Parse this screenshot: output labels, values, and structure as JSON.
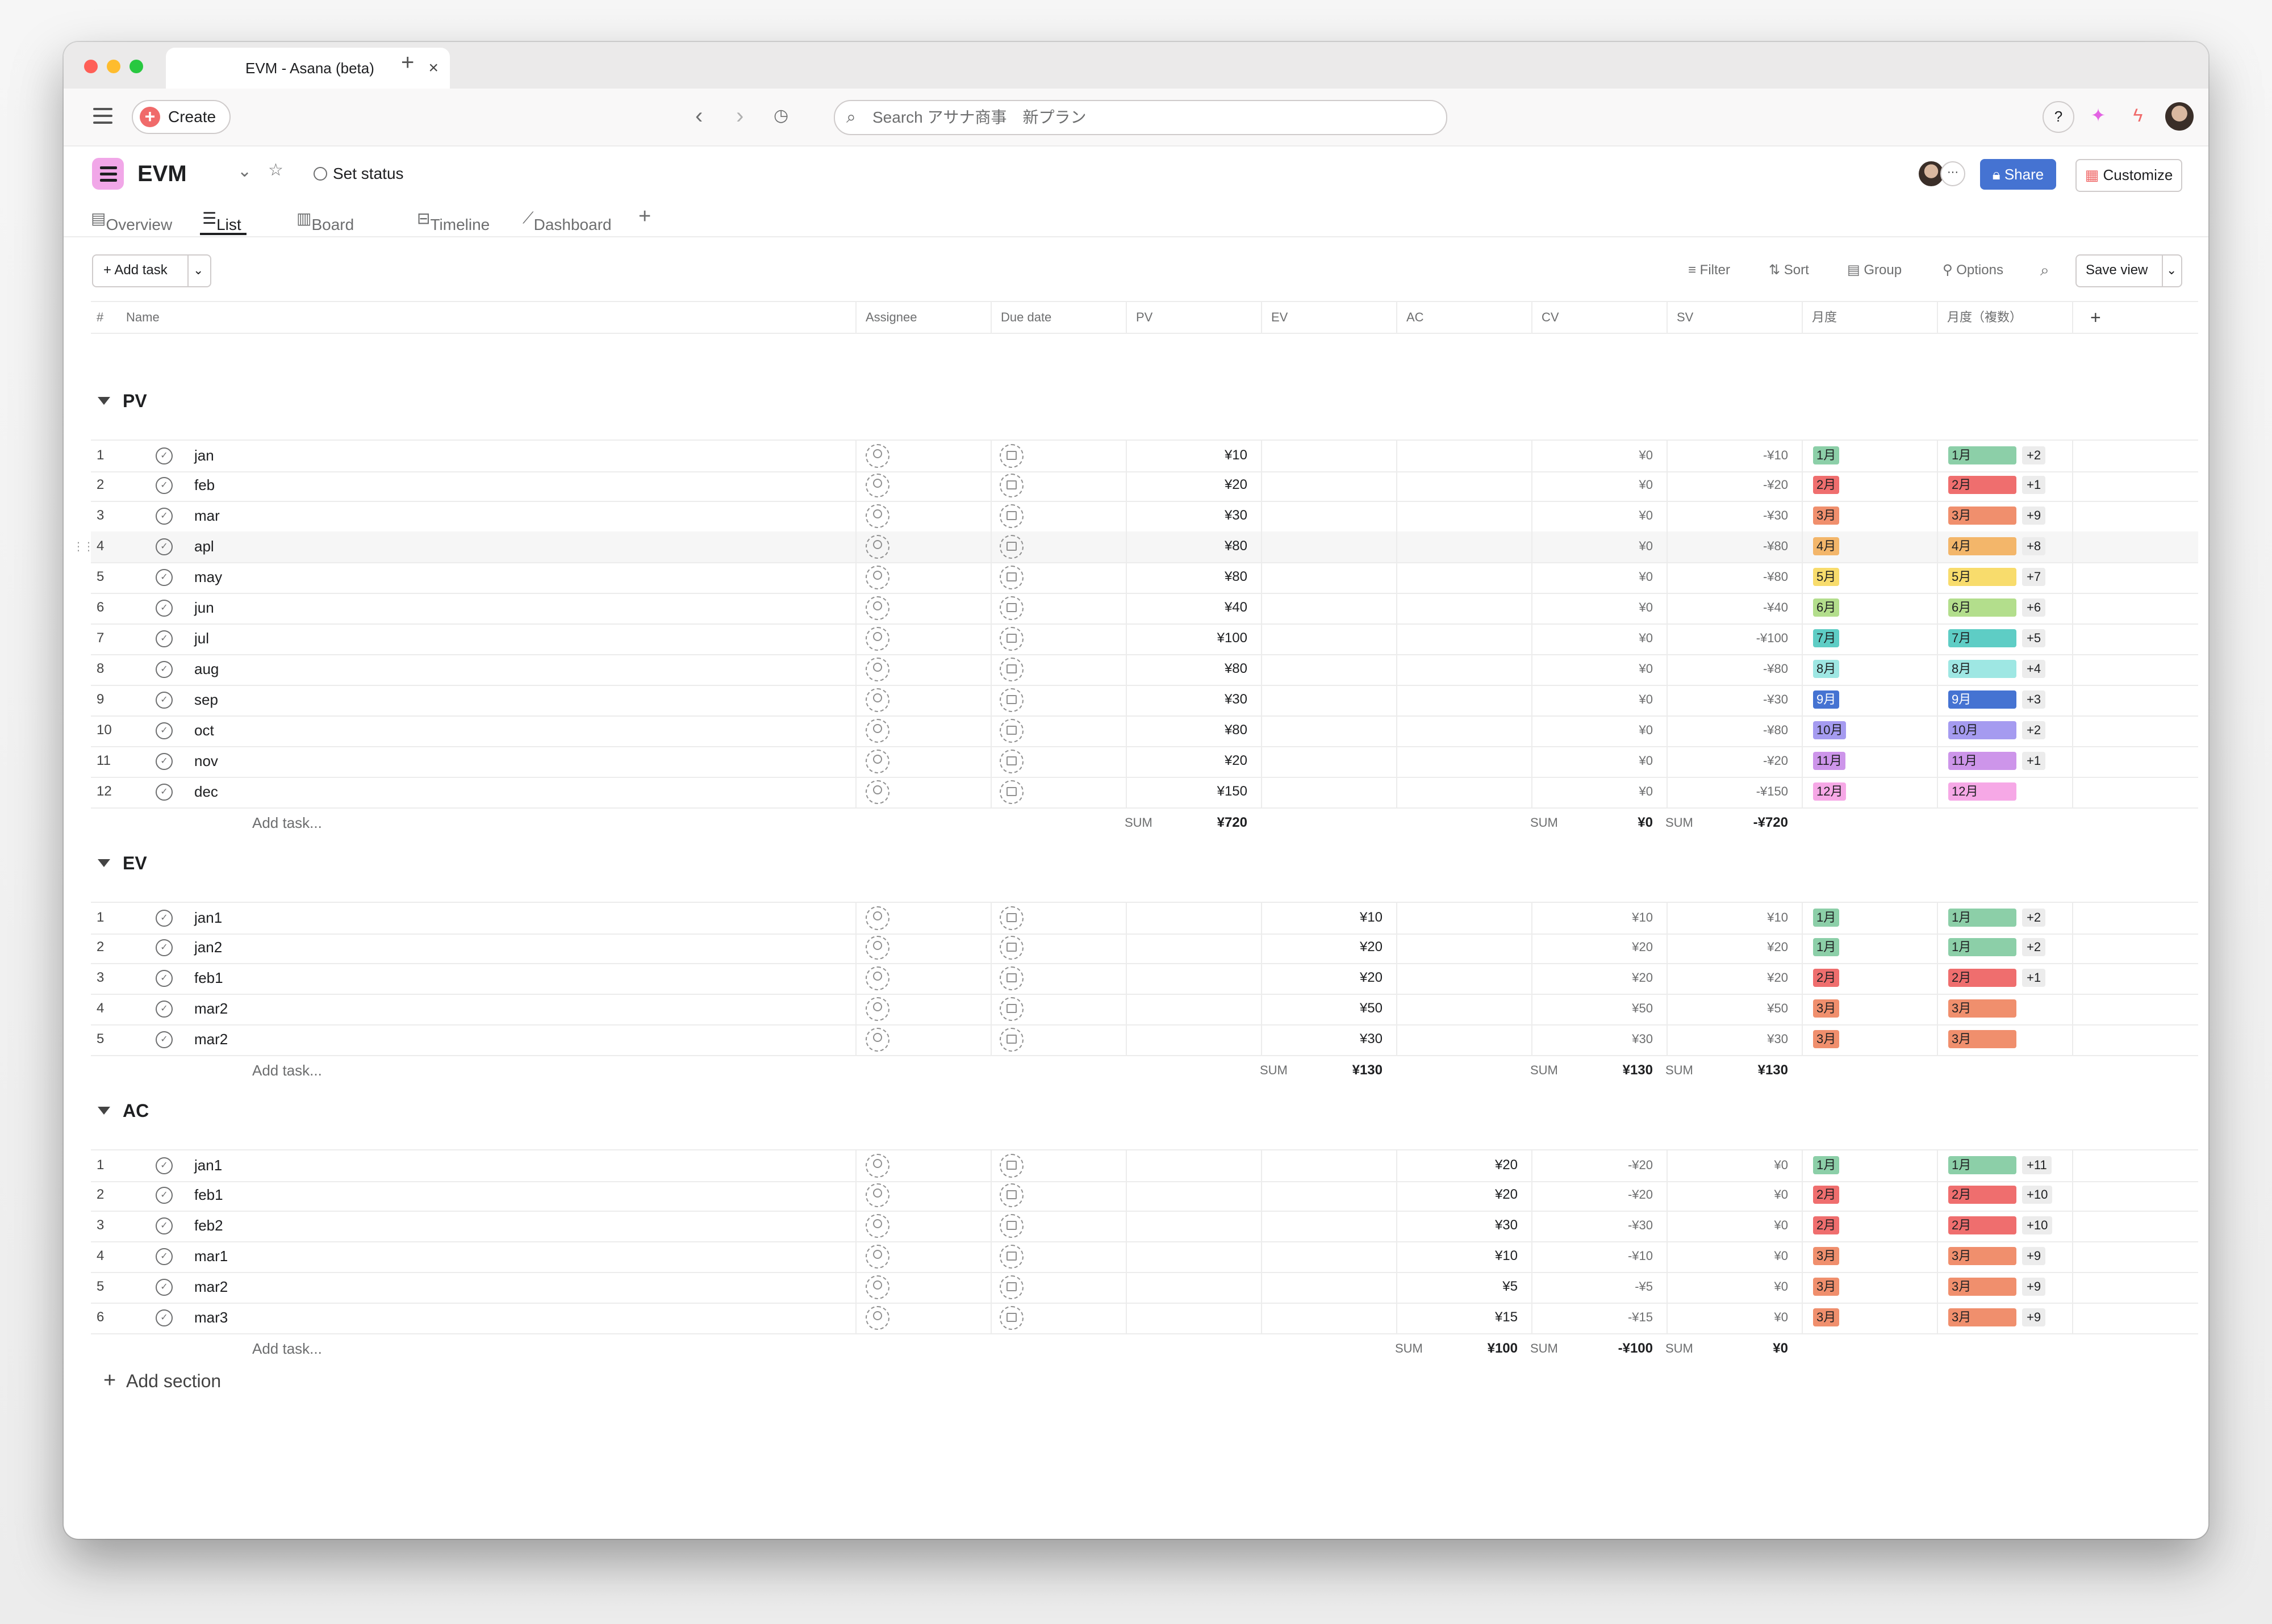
{
  "browser": {
    "tab_title": "EVM - Asana (beta)",
    "tab_close": "×",
    "new_tab": "+"
  },
  "toolbar": {
    "create_label": "Create",
    "search_placeholder": "Search アサナ商事　新プラン",
    "help_label": "?"
  },
  "project": {
    "title": "EVM",
    "set_status": "Set status",
    "share_label": "Share",
    "customize_label": "Customize",
    "views": [
      "Overview",
      "List",
      "Board",
      "Timeline",
      "Dashboard"
    ],
    "active_view": "List"
  },
  "list_toolbar": {
    "add_task": "Add task",
    "filter": "Filter",
    "sort": "Sort",
    "group": "Group",
    "options": "Options",
    "save_view": "Save view"
  },
  "columns": [
    "#",
    "Name",
    "Assignee",
    "Due date",
    "PV",
    "EV",
    "AC",
    "CV",
    "SV",
    "月度",
    "月度（複数）"
  ],
  "month_colors": {
    "1月": "#8ccfa8",
    "2月": "#ef6e6e",
    "3月": "#f08f6d",
    "4月": "#f3b66a",
    "5月": "#f8dc6c",
    "6月": "#b3de8c",
    "7月": "#5ecdc5",
    "8月": "#9ee7e3",
    "9月": "#4573d2",
    "10月": "#a59bf0",
    "11月": "#cd95ea",
    "12月": "#f6a8e6"
  },
  "sections": [
    {
      "title": "PV",
      "add_task": "Add task...",
      "rows": [
        {
          "n": "1",
          "name": "jan",
          "pv": "¥10",
          "ev": "",
          "ac": "",
          "cv": "¥0",
          "sv": "-¥10",
          "m": "1月",
          "mm": "1月",
          "extra": "+2"
        },
        {
          "n": "2",
          "name": "feb",
          "pv": "¥20",
          "ev": "",
          "ac": "",
          "cv": "¥0",
          "sv": "-¥20",
          "m": "2月",
          "mm": "2月",
          "extra": "+1"
        },
        {
          "n": "3",
          "name": "mar",
          "pv": "¥30",
          "ev": "",
          "ac": "",
          "cv": "¥0",
          "sv": "-¥30",
          "m": "3月",
          "mm": "3月",
          "extra": "+9"
        },
        {
          "n": "4",
          "name": "apl",
          "pv": "¥80",
          "ev": "",
          "ac": "",
          "cv": "¥0",
          "sv": "-¥80",
          "m": "4月",
          "mm": "4月",
          "extra": "+8"
        },
        {
          "n": "5",
          "name": "may",
          "pv": "¥80",
          "ev": "",
          "ac": "",
          "cv": "¥0",
          "sv": "-¥80",
          "m": "5月",
          "mm": "5月",
          "extra": "+7"
        },
        {
          "n": "6",
          "name": "jun",
          "pv": "¥40",
          "ev": "",
          "ac": "",
          "cv": "¥0",
          "sv": "-¥40",
          "m": "6月",
          "mm": "6月",
          "extra": "+6"
        },
        {
          "n": "7",
          "name": "jul",
          "pv": "¥100",
          "ev": "",
          "ac": "",
          "cv": "¥0",
          "sv": "-¥100",
          "m": "7月",
          "mm": "7月",
          "extra": "+5"
        },
        {
          "n": "8",
          "name": "aug",
          "pv": "¥80",
          "ev": "",
          "ac": "",
          "cv": "¥0",
          "sv": "-¥80",
          "m": "8月",
          "mm": "8月",
          "extra": "+4"
        },
        {
          "n": "9",
          "name": "sep",
          "pv": "¥30",
          "ev": "",
          "ac": "",
          "cv": "¥0",
          "sv": "-¥30",
          "m": "9月",
          "mm": "9月",
          "extra": "+3"
        },
        {
          "n": "10",
          "name": "oct",
          "pv": "¥80",
          "ev": "",
          "ac": "",
          "cv": "¥0",
          "sv": "-¥80",
          "m": "10月",
          "mm": "10月",
          "extra": "+2"
        },
        {
          "n": "11",
          "name": "nov",
          "pv": "¥20",
          "ev": "",
          "ac": "",
          "cv": "¥0",
          "sv": "-¥20",
          "m": "11月",
          "mm": "11月",
          "extra": "+1"
        },
        {
          "n": "12",
          "name": "dec",
          "pv": "¥150",
          "ev": "",
          "ac": "",
          "cv": "¥0",
          "sv": "-¥150",
          "m": "12月",
          "mm": "12月",
          "extra": ""
        }
      ],
      "sums": {
        "pv": "¥720",
        "ev": "",
        "ac": "",
        "cv": "¥0",
        "sv": "-¥720"
      }
    },
    {
      "title": "EV",
      "add_task": "Add task...",
      "rows": [
        {
          "n": "1",
          "name": "jan1",
          "pv": "",
          "ev": "¥10",
          "ac": "",
          "cv": "¥10",
          "sv": "¥10",
          "m": "1月",
          "mm": "1月",
          "extra": "+2"
        },
        {
          "n": "2",
          "name": "jan2",
          "pv": "",
          "ev": "¥20",
          "ac": "",
          "cv": "¥20",
          "sv": "¥20",
          "m": "1月",
          "mm": "1月",
          "extra": "+2"
        },
        {
          "n": "3",
          "name": "feb1",
          "pv": "",
          "ev": "¥20",
          "ac": "",
          "cv": "¥20",
          "sv": "¥20",
          "m": "2月",
          "mm": "2月",
          "extra": "+1"
        },
        {
          "n": "4",
          "name": "mar2",
          "pv": "",
          "ev": "¥50",
          "ac": "",
          "cv": "¥50",
          "sv": "¥50",
          "m": "3月",
          "mm": "3月",
          "extra": ""
        },
        {
          "n": "5",
          "name": "mar2",
          "pv": "",
          "ev": "¥30",
          "ac": "",
          "cv": "¥30",
          "sv": "¥30",
          "m": "3月",
          "mm": "3月",
          "extra": ""
        }
      ],
      "sums": {
        "pv": "",
        "ev": "¥130",
        "ac": "",
        "cv": "¥130",
        "sv": "¥130"
      }
    },
    {
      "title": "AC",
      "add_task": "Add task...",
      "rows": [
        {
          "n": "1",
          "name": "jan1",
          "pv": "",
          "ev": "",
          "ac": "¥20",
          "cv": "-¥20",
          "sv": "¥0",
          "m": "1月",
          "mm": "1月",
          "extra": "+11"
        },
        {
          "n": "2",
          "name": "feb1",
          "pv": "",
          "ev": "",
          "ac": "¥20",
          "cv": "-¥20",
          "sv": "¥0",
          "m": "2月",
          "mm": "2月",
          "extra": "+10"
        },
        {
          "n": "3",
          "name": "feb2",
          "pv": "",
          "ev": "",
          "ac": "¥30",
          "cv": "-¥30",
          "sv": "¥0",
          "m": "2月",
          "mm": "2月",
          "extra": "+10"
        },
        {
          "n": "4",
          "name": "mar1",
          "pv": "",
          "ev": "",
          "ac": "¥10",
          "cv": "-¥10",
          "sv": "¥0",
          "m": "3月",
          "mm": "3月",
          "extra": "+9"
        },
        {
          "n": "5",
          "name": "mar2",
          "pv": "",
          "ev": "",
          "ac": "¥5",
          "cv": "-¥5",
          "sv": "¥0",
          "m": "3月",
          "mm": "3月",
          "extra": "+9"
        },
        {
          "n": "6",
          "name": "mar3",
          "pv": "",
          "ev": "",
          "ac": "¥15",
          "cv": "-¥15",
          "sv": "¥0",
          "m": "3月",
          "mm": "3月",
          "extra": "+9"
        }
      ],
      "sums": {
        "pv": "",
        "ev": "",
        "ac": "¥100",
        "cv": "-¥100",
        "sv": "¥0"
      }
    }
  ],
  "sum_label": "SUM",
  "add_section": "Add section"
}
